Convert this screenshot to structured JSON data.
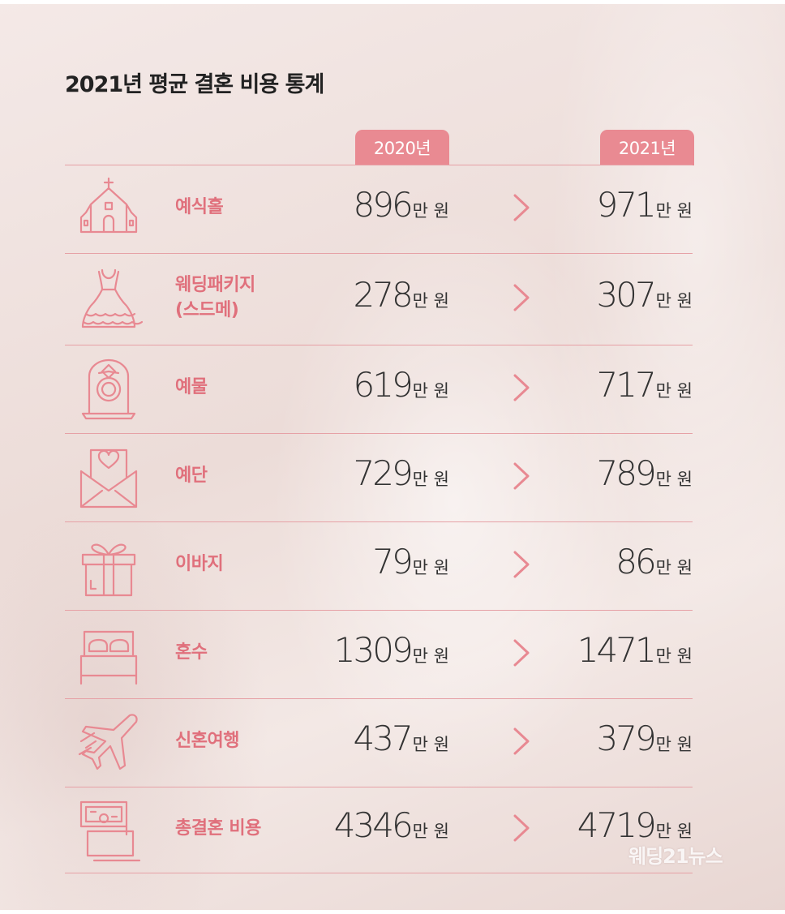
{
  "title": "2021년 평균 결혼 비용 통계",
  "years": [
    "2020년",
    "2021년"
  ],
  "unit": "만 원",
  "watermark": "웨딩21뉴스",
  "colors": {
    "accent": "#e98a92",
    "label": "#e0707c",
    "line": "#e6a1a6"
  },
  "chart_data": {
    "type": "table",
    "title": "2021년 평균 결혼 비용 통계",
    "columns": [
      "2020년",
      "2021년"
    ],
    "unit": "만 원",
    "rows": [
      {
        "icon": "chapel-icon",
        "label_lines": [
          "예식홀"
        ],
        "v2020": "896",
        "v2021": "971"
      },
      {
        "icon": "wedding-dress-icon",
        "label_lines": [
          "웨딩패키지",
          "(스드메)"
        ],
        "v2020": "278",
        "v2021": "307"
      },
      {
        "icon": "ring-box-icon",
        "label_lines": [
          "예물"
        ],
        "v2020": "619",
        "v2021": "717"
      },
      {
        "icon": "envelope-heart-icon",
        "label_lines": [
          "예단"
        ],
        "v2020": "729",
        "v2021": "789"
      },
      {
        "icon": "gift-box-icon",
        "label_lines": [
          "이바지"
        ],
        "v2020": "79",
        "v2021": "86"
      },
      {
        "icon": "bed-icon",
        "label_lines": [
          "혼수"
        ],
        "v2020": "1309",
        "v2021": "1471"
      },
      {
        "icon": "airplane-icon",
        "label_lines": [
          "신혼여행"
        ],
        "v2020": "437",
        "v2021": "379"
      },
      {
        "icon": "money-stack-icon",
        "label_lines": [
          "총결혼 비용"
        ],
        "v2020": "4346",
        "v2021": "4719"
      }
    ]
  }
}
